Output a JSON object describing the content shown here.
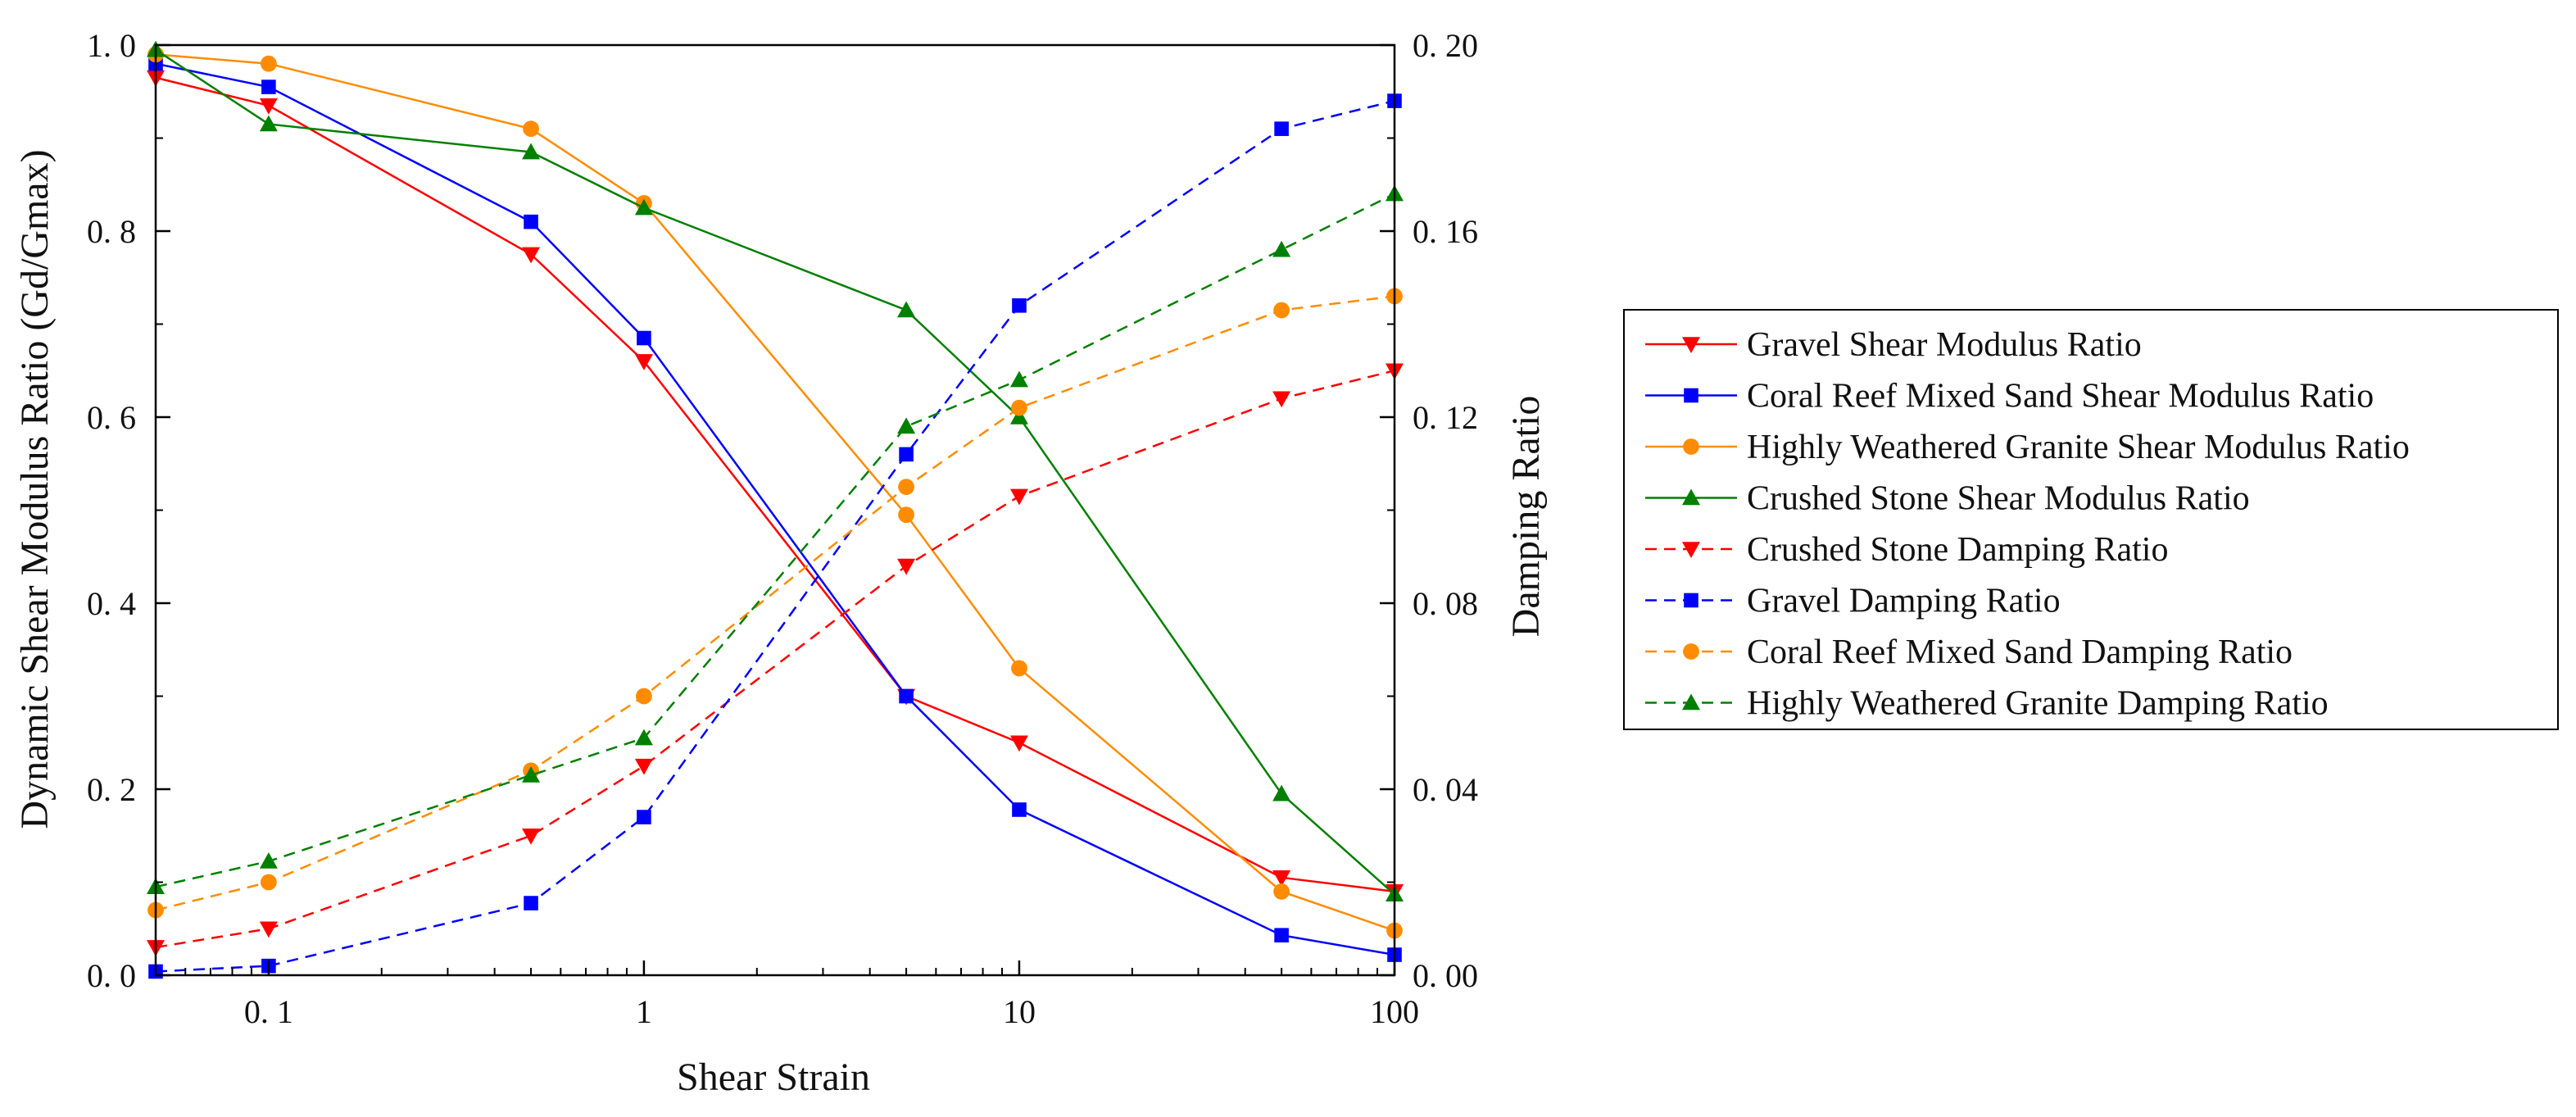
{
  "chart_data": {
    "type": "line",
    "title": "",
    "xlabel": "Shear Strain",
    "ylabel_left": "Dynamic Shear Modulus Ratio (Gd/Gmax)",
    "ylabel_right": "Damping Ratio",
    "x_scale": "log",
    "xlim": [
      0.05,
      100
    ],
    "ylim_left": [
      0,
      1.0
    ],
    "ylim_right": [
      0,
      0.2
    ],
    "x_ticks": [
      0.1,
      1,
      10,
      100
    ],
    "x_tick_labels": [
      "0. 1",
      "1",
      "10",
      "100"
    ],
    "y_left_ticks": [
      0,
      0.2,
      0.4,
      0.6,
      0.8,
      1.0
    ],
    "y_left_tick_labels": [
      "0. 0",
      "0. 2",
      "0. 4",
      "0. 6",
      "0. 8",
      "1. 0"
    ],
    "y_right_ticks": [
      0,
      0.04,
      0.08,
      0.12,
      0.16,
      0.2
    ],
    "y_right_tick_labels": [
      "0. 00",
      "0. 04",
      "0. 08",
      "0. 12",
      "0. 16",
      "0. 20"
    ],
    "legend_position": "right, outside plot",
    "x": [
      0.05,
      0.1,
      0.5,
      1,
      5,
      10,
      50,
      100
    ],
    "series": [
      {
        "name": "Gravel Shear Modulus Ratio",
        "axis": "left",
        "color": "#ff0000",
        "dash": false,
        "marker": "triangle-down",
        "values": [
          0.965,
          0.935,
          0.775,
          0.66,
          0.3,
          0.25,
          0.105,
          0.09
        ]
      },
      {
        "name": "Coral Reef Mixed Sand Shear Modulus Ratio",
        "axis": "left",
        "color": "#0000ff",
        "dash": false,
        "marker": "square",
        "values": [
          0.98,
          0.955,
          0.81,
          0.685,
          0.3,
          0.178,
          0.043,
          0.022
        ]
      },
      {
        "name": "Highly Weathered Granite Shear Modulus Ratio",
        "axis": "left",
        "color": "#ff8c00",
        "dash": false,
        "marker": "circle",
        "values": [
          0.99,
          0.98,
          0.91,
          0.83,
          0.495,
          0.33,
          0.09,
          0.048
        ]
      },
      {
        "name": "Crushed Stone Shear Modulus Ratio",
        "axis": "left",
        "color": "#008000",
        "dash": false,
        "marker": "triangle-up",
        "values": [
          0.995,
          0.915,
          0.885,
          0.825,
          0.715,
          0.6,
          0.195,
          0.087
        ]
      },
      {
        "name": "Crushed Stone Damping Ratio",
        "axis": "right",
        "color": "#ff0000",
        "dash": true,
        "marker": "triangle-down",
        "values": [
          0.006,
          0.01,
          0.03,
          0.045,
          0.088,
          0.103,
          0.124,
          0.13
        ]
      },
      {
        "name": "Gravel Damping Ratio",
        "axis": "right",
        "color": "#0000ff",
        "dash": true,
        "marker": "square",
        "values": [
          0.0008,
          0.002,
          0.0155,
          0.034,
          0.112,
          0.144,
          0.182,
          0.188
        ]
      },
      {
        "name": "Coral Reef Mixed Sand Damping Ratio",
        "axis": "right",
        "color": "#ff8c00",
        "dash": true,
        "marker": "circle",
        "values": [
          0.014,
          0.02,
          0.044,
          0.06,
          0.105,
          0.122,
          0.143,
          0.146
        ]
      },
      {
        "name": "Highly Weathered Granite Damping Ratio",
        "axis": "right",
        "color": "#008000",
        "dash": true,
        "marker": "triangle-up",
        "values": [
          0.019,
          0.0245,
          0.043,
          0.051,
          0.118,
          0.128,
          0.156,
          0.168
        ]
      }
    ]
  }
}
